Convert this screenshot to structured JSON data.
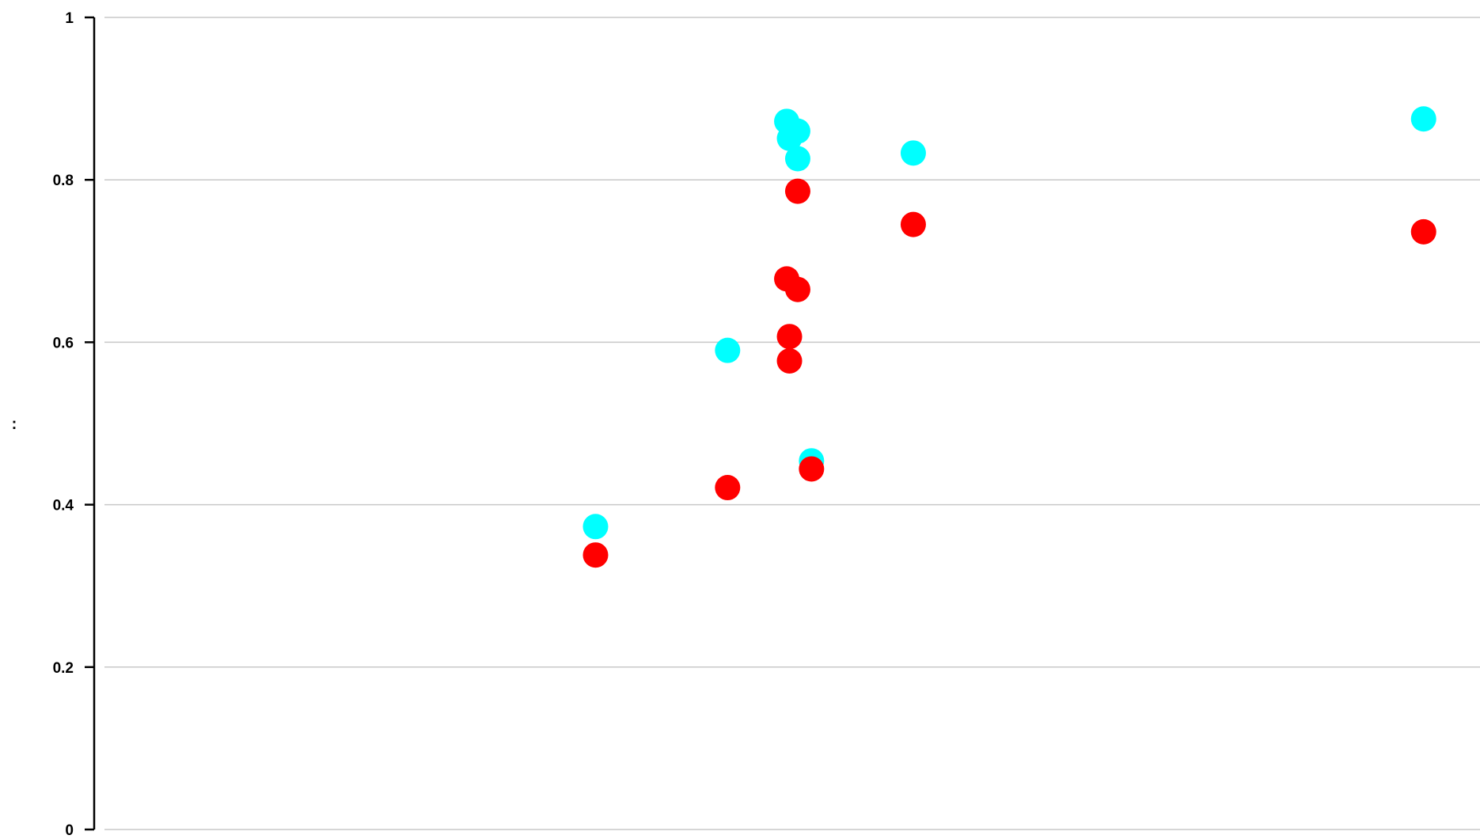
{
  "chart_data": {
    "type": "scatter",
    "title": "",
    "xlabel": "",
    "ylabel": ":",
    "xlim": [
      0,
      1
    ],
    "ylim": [
      0,
      1
    ],
    "y_ticks": [
      0,
      0.2,
      0.4,
      0.6,
      0.8,
      1
    ],
    "y_tick_labels": [
      "0",
      "0.2",
      "0.4",
      "0.6",
      "0.8",
      "1"
    ],
    "grid": true,
    "legend": "none",
    "series": [
      {
        "color": "#00ffff",
        "points": [
          {
            "x": 0.357,
            "y": 0.373
          },
          {
            "x": 0.453,
            "y": 0.59
          },
          {
            "x": 0.496,
            "y": 0.872
          },
          {
            "x": 0.504,
            "y": 0.86
          },
          {
            "x": 0.498,
            "y": 0.851
          },
          {
            "x": 0.504,
            "y": 0.826
          },
          {
            "x": 0.514,
            "y": 0.454
          },
          {
            "x": 0.588,
            "y": 0.833
          },
          {
            "x": 0.959,
            "y": 0.875
          }
        ]
      },
      {
        "color": "#ff0000",
        "points": [
          {
            "x": 0.357,
            "y": 0.338
          },
          {
            "x": 0.453,
            "y": 0.421
          },
          {
            "x": 0.496,
            "y": 0.678
          },
          {
            "x": 0.504,
            "y": 0.665
          },
          {
            "x": 0.498,
            "y": 0.607
          },
          {
            "x": 0.498,
            "y": 0.577
          },
          {
            "x": 0.504,
            "y": 0.786
          },
          {
            "x": 0.514,
            "y": 0.444
          },
          {
            "x": 0.588,
            "y": 0.745
          },
          {
            "x": 0.959,
            "y": 0.736
          }
        ]
      }
    ]
  }
}
